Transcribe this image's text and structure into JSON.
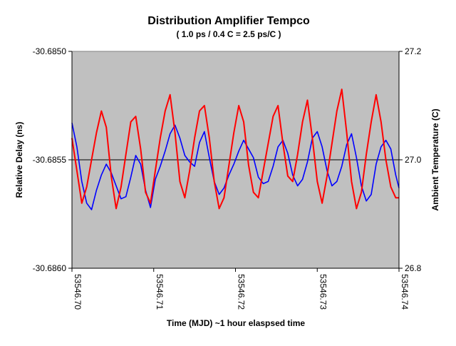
{
  "chart_data": {
    "type": "line",
    "title": "Distribution Amplifier Tempco",
    "subtitle": "( 1.0 ps / 0.4 C = 2.5 ps/C )",
    "xlabel": "Time (MJD)  ~1 hour elaspsed time",
    "ylabel": "Relative Delay (ns)",
    "y2label": "Ambient Temperature (C)",
    "xlim": [
      53546.7,
      53546.74
    ],
    "ylim": [
      -30.686,
      -30.685
    ],
    "y2lim": [
      26.8,
      27.2
    ],
    "x_ticks": [
      "53546.70",
      "53546.71",
      "53546.72",
      "53546.73",
      "53546.74"
    ],
    "y_ticks": [
      "-30.6850",
      "-30.6855",
      "-30.6860"
    ],
    "y2_ticks": [
      "27.2",
      "27.0",
      "26.8"
    ],
    "grid": "horizontal line at -30.6855",
    "legend": "none",
    "plot_background": "#c0c0c0",
    "series": [
      {
        "axis": "left",
        "color": "#0000ff",
        "x": [
          53546.7,
          53546.7006,
          53546.7012,
          53546.7018,
          53546.7024,
          53546.703,
          53546.7036,
          53546.7042,
          53546.7048,
          53546.7054,
          53546.706,
          53546.7066,
          53546.7072,
          53546.7078,
          53546.7084,
          53546.709,
          53546.7096,
          53546.7102,
          53546.7108,
          53546.7114,
          53546.712,
          53546.7126,
          53546.7132,
          53546.7138,
          53546.7144,
          53546.715,
          53546.7156,
          53546.7162,
          53546.7168,
          53546.7174,
          53546.718,
          53546.7186,
          53546.7192,
          53546.7198,
          53546.7204,
          53546.721,
          53546.7216,
          53546.7222,
          53546.7228,
          53546.7234,
          53546.724,
          53546.7246,
          53546.7252,
          53546.7258,
          53546.7264,
          53546.727,
          53546.7276,
          53546.7282,
          53546.7288,
          53546.7294,
          53546.73,
          53546.7306,
          53546.7312,
          53546.7318,
          53546.7324,
          53546.733,
          53546.7336,
          53546.7342,
          53546.7348,
          53546.7354,
          53546.736,
          53546.7366,
          53546.7372,
          53546.7378,
          53546.7384,
          53546.739,
          53546.7396,
          53546.74
        ],
        "y": [
          -30.68533,
          -30.68544,
          -30.6856,
          -30.6857,
          -30.68573,
          -30.68564,
          -30.68557,
          -30.68552,
          -30.68556,
          -30.68562,
          -30.68568,
          -30.68567,
          -30.68558,
          -30.68548,
          -30.68552,
          -30.68564,
          -30.68572,
          -30.68559,
          -30.68553,
          -30.68546,
          -30.68538,
          -30.68534,
          -30.6854,
          -30.68548,
          -30.68551,
          -30.68553,
          -30.68542,
          -30.68537,
          -30.68549,
          -30.6856,
          -30.68566,
          -30.68563,
          -30.68557,
          -30.68552,
          -30.68546,
          -30.68541,
          -30.68545,
          -30.68549,
          -30.68558,
          -30.68561,
          -30.6856,
          -30.68553,
          -30.68544,
          -30.68541,
          -30.68547,
          -30.68557,
          -30.68562,
          -30.68559,
          -30.68551,
          -30.6854,
          -30.68537,
          -30.68544,
          -30.68555,
          -30.68562,
          -30.6856,
          -30.68553,
          -30.68543,
          -30.68538,
          -30.68549,
          -30.68562,
          -30.68569,
          -30.68566,
          -30.68552,
          -30.68544,
          -30.68541,
          -30.68545,
          -30.68557,
          -30.68563
        ]
      },
      {
        "axis": "right",
        "color": "#ff0000",
        "x": [
          53546.7,
          53546.7006,
          53546.7012,
          53546.7018,
          53546.7024,
          53546.703,
          53546.7036,
          53546.7042,
          53546.7048,
          53546.7054,
          53546.706,
          53546.7066,
          53546.7072,
          53546.7078,
          53546.7084,
          53546.709,
          53546.7096,
          53546.7102,
          53546.7108,
          53546.7114,
          53546.712,
          53546.7126,
          53546.7132,
          53546.7138,
          53546.7144,
          53546.715,
          53546.7156,
          53546.7162,
          53546.7168,
          53546.7174,
          53546.718,
          53546.7186,
          53546.7192,
          53546.7198,
          53546.7204,
          53546.721,
          53546.7216,
          53546.7222,
          53546.7228,
          53546.7234,
          53546.724,
          53546.7246,
          53546.7252,
          53546.7258,
          53546.7264,
          53546.727,
          53546.7276,
          53546.7282,
          53546.7288,
          53546.7294,
          53546.73,
          53546.7306,
          53546.7312,
          53546.7318,
          53546.7324,
          53546.733,
          53546.7336,
          53546.7342,
          53546.7348,
          53546.7354,
          53546.736,
          53546.7366,
          53546.7372,
          53546.7378,
          53546.7384,
          53546.739,
          53546.7396,
          53546.74
        ],
        "y": [
          27.04,
          26.98,
          26.92,
          26.95,
          27.0,
          27.05,
          27.09,
          27.06,
          26.97,
          26.91,
          26.95,
          27.01,
          27.07,
          27.08,
          27.02,
          26.94,
          26.92,
          26.98,
          27.04,
          27.09,
          27.12,
          27.05,
          26.96,
          26.93,
          26.98,
          27.04,
          27.09,
          27.1,
          27.04,
          26.96,
          26.91,
          26.93,
          26.99,
          27.05,
          27.1,
          27.07,
          26.99,
          26.94,
          26.93,
          26.98,
          27.03,
          27.08,
          27.1,
          27.03,
          26.97,
          26.96,
          27.01,
          27.07,
          27.11,
          27.04,
          26.96,
          26.92,
          26.97,
          27.03,
          27.09,
          27.13,
          27.05,
          26.96,
          26.91,
          26.94,
          27.01,
          27.07,
          27.12,
          27.07,
          27.0,
          26.95,
          26.93,
          26.93
        ]
      }
    ]
  }
}
